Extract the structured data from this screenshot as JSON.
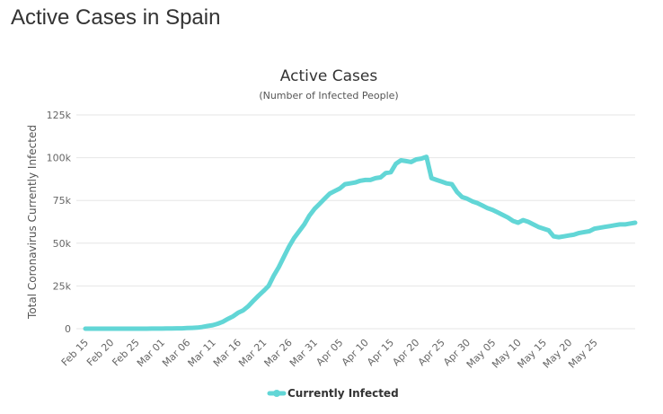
{
  "page": {
    "title": "Active Cases in Spain"
  },
  "chart_data": {
    "type": "line",
    "title": "Active Cases",
    "subtitle": "(Number of Infected People)",
    "y_label": "Total Coronavirus Currently Infected",
    "categories": [
      "Feb 15",
      null,
      null,
      null,
      null,
      "Feb 20",
      null,
      null,
      null,
      null,
      "Feb 25",
      null,
      null,
      null,
      null,
      "Mar 01",
      null,
      null,
      null,
      null,
      "Mar 06",
      null,
      null,
      null,
      null,
      "Mar 11",
      null,
      null,
      null,
      null,
      "Mar 16",
      null,
      null,
      null,
      null,
      "Mar 21",
      null,
      null,
      null,
      null,
      "Mar 26",
      null,
      null,
      null,
      null,
      "Mar 31",
      null,
      null,
      null,
      null,
      "Apr 05",
      null,
      null,
      null,
      null,
      "Apr 10",
      null,
      null,
      null,
      null,
      "Apr 15",
      null,
      null,
      null,
      null,
      "Apr 20",
      null,
      null,
      null,
      null,
      "Apr 25",
      null,
      null,
      null,
      null,
      "Apr 30",
      null,
      null,
      null,
      null,
      "May 05",
      null,
      null,
      null,
      null,
      "May 10",
      null,
      null,
      null,
      null,
      "May 15",
      null,
      null,
      null,
      null,
      "May 20",
      null,
      null,
      null,
      null,
      "May 25",
      null,
      null,
      null,
      null,
      null,
      null,
      null,
      null
    ],
    "series": [
      {
        "name": "Currently Infected",
        "color": "#62d6d6",
        "values": [
          2,
          2,
          2,
          2,
          2,
          2,
          2,
          2,
          2,
          2,
          2,
          10,
          23,
          43,
          63,
          77,
          108,
          145,
          190,
          213,
          384,
          483,
          617,
          1011,
          1567,
          2050,
          2870,
          4030,
          5700,
          7200,
          9300,
          10700,
          13100,
          16300,
          19300,
          22000,
          25000,
          31000,
          36000,
          42000,
          48000,
          53000,
          57000,
          61000,
          66000,
          70000,
          73000,
          76000,
          79000,
          80500,
          82000,
          84500,
          85000,
          85500,
          86500,
          87000,
          87000,
          88000,
          88500,
          91000,
          91500,
          96500,
          98500,
          98000,
          97500,
          99000,
          99500,
          100500,
          88000,
          87000,
          86000,
          85000,
          84500,
          80000,
          77000,
          76000,
          74500,
          73500,
          72000,
          70500,
          69500,
          68000,
          66500,
          65000,
          63000,
          62000,
          63500,
          62500,
          61000,
          59500,
          58500,
          57500,
          54000,
          53500,
          54000,
          54500,
          55000,
          56000,
          56500,
          57000,
          58500,
          59000,
          59500,
          60000,
          60500,
          61000,
          61000,
          61500,
          62000
        ]
      }
    ],
    "ylim": [
      0,
      125000
    ],
    "yticks": [
      0,
      {
        "value": 25000,
        "label": "25k"
      },
      {
        "value": 50000,
        "label": "50k"
      },
      {
        "value": 75000,
        "label": "75k"
      },
      {
        "value": 100000,
        "label": "100k"
      },
      {
        "value": 125000,
        "label": "125k"
      }
    ],
    "grid": true
  }
}
